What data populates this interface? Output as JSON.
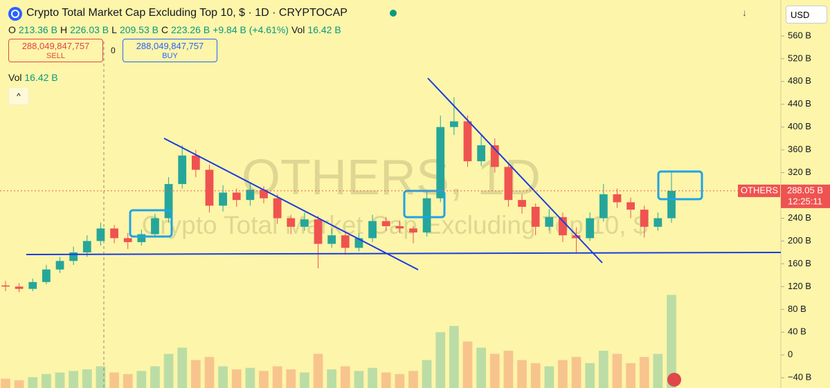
{
  "header": {
    "title": "Crypto Total Market Cap Excluding Top 10, $ · 1D · CRYPTOCAP",
    "ohlc": [
      {
        "label": "O",
        "value": "213.36 B"
      },
      {
        "label": "H",
        "value": "226.03 B"
      },
      {
        "label": "L",
        "value": "209.53 B"
      },
      {
        "label": "C",
        "value": "223.26 B"
      }
    ],
    "change": "+9.84 B (+4.61%)",
    "vol_label": "Vol",
    "vol_value": "16.42 B"
  },
  "sell": {
    "price": "288,049,847,757",
    "label": "SELL"
  },
  "spread": "0",
  "buy": {
    "price": "288,049,847,757",
    "label": "BUY"
  },
  "volume_legend": {
    "label": "Vol",
    "value": "16.42 B"
  },
  "currency": "USD",
  "watermark": [
    "OTHERS, 1D",
    "Crypto Total Market Cap Excluding Top 10, $"
  ],
  "chart_data": {
    "type": "candlestick",
    "up_color": "#26a69a",
    "down_color": "#ef5350",
    "ylim": [
      -58,
      623
    ],
    "yticks": [
      {
        "value": 560,
        "label": "560 B"
      },
      {
        "value": 520,
        "label": "520 B"
      },
      {
        "value": 480,
        "label": "480 B"
      },
      {
        "value": 440,
        "label": "440 B"
      },
      {
        "value": 400,
        "label": "400 B"
      },
      {
        "value": 360,
        "label": "360 B"
      },
      {
        "value": 320,
        "label": "320 B"
      },
      {
        "value": 240,
        "label": "240 B"
      },
      {
        "value": 200,
        "label": "200 B"
      },
      {
        "value": 160,
        "label": "160 B"
      },
      {
        "value": 120,
        "label": "120 B"
      },
      {
        "value": 80,
        "label": "80 B"
      },
      {
        "value": 40,
        "label": "40 B"
      },
      0,
      {
        "value": -40,
        "label": "−40 B"
      }
    ],
    "ohlc": [
      [
        122,
        130,
        112,
        120
      ],
      [
        120,
        126,
        110,
        116
      ],
      [
        116,
        134,
        112,
        128
      ],
      [
        128,
        158,
        124,
        150
      ],
      [
        150,
        172,
        144,
        165
      ],
      [
        165,
        190,
        158,
        180
      ],
      [
        180,
        210,
        172,
        200
      ],
      [
        200,
        232,
        192,
        222
      ],
      [
        222,
        228,
        196,
        205
      ],
      [
        205,
        214,
        186,
        198
      ],
      [
        198,
        220,
        192,
        212
      ],
      [
        212,
        248,
        206,
        240
      ],
      [
        240,
        312,
        232,
        300
      ],
      [
        300,
        368,
        292,
        350
      ],
      [
        350,
        360,
        312,
        325
      ],
      [
        325,
        334,
        250,
        262
      ],
      [
        262,
        298,
        252,
        285
      ],
      [
        285,
        292,
        260,
        272
      ],
      [
        272,
        302,
        262,
        290
      ],
      [
        290,
        296,
        266,
        275
      ],
      [
        275,
        282,
        230,
        240
      ],
      [
        240,
        246,
        212,
        225
      ],
      [
        225,
        250,
        218,
        238
      ],
      [
        238,
        244,
        152,
        195
      ],
      [
        195,
        222,
        188,
        210
      ],
      [
        210,
        216,
        176,
        188
      ],
      [
        188,
        214,
        182,
        205
      ],
      [
        205,
        246,
        198,
        235
      ],
      [
        235,
        242,
        218,
        226
      ],
      [
        226,
        236,
        214,
        222
      ],
      [
        222,
        226,
        196,
        215
      ],
      [
        215,
        290,
        208,
        275
      ],
      [
        275,
        420,
        268,
        400
      ],
      [
        400,
        452,
        386,
        410
      ],
      [
        410,
        420,
        330,
        340
      ],
      [
        340,
        385,
        332,
        368
      ],
      [
        368,
        380,
        320,
        330
      ],
      [
        330,
        338,
        260,
        272
      ],
      [
        272,
        282,
        248,
        260
      ],
      [
        260,
        266,
        210,
        225
      ],
      [
        225,
        256,
        218,
        242
      ],
      [
        242,
        250,
        198,
        210
      ],
      [
        210,
        224,
        178,
        205
      ],
      [
        205,
        250,
        200,
        240
      ],
      [
        240,
        300,
        234,
        282
      ],
      [
        282,
        292,
        258,
        268
      ],
      [
        268,
        276,
        240,
        255
      ],
      [
        255,
        262,
        206,
        225
      ],
      [
        225,
        250,
        218,
        240
      ],
      [
        240,
        322,
        232,
        288.05
      ]
    ],
    "volume": [
      6,
      5,
      7,
      9,
      10,
      11,
      12,
      14,
      10,
      9,
      11,
      14,
      22,
      26,
      18,
      20,
      14,
      12,
      13,
      11,
      14,
      12,
      10,
      22,
      12,
      14,
      11,
      13,
      10,
      9,
      11,
      18,
      36,
      40,
      30,
      26,
      22,
      24,
      18,
      16,
      14,
      18,
      20,
      16,
      24,
      22,
      16,
      20,
      22,
      60
    ],
    "volume_ylim": [
      0,
      250
    ],
    "last_price": {
      "value": 288.05,
      "label": "288.05 B"
    },
    "last_symbol": "OTHERS",
    "countdown": "12:25:11"
  }
}
